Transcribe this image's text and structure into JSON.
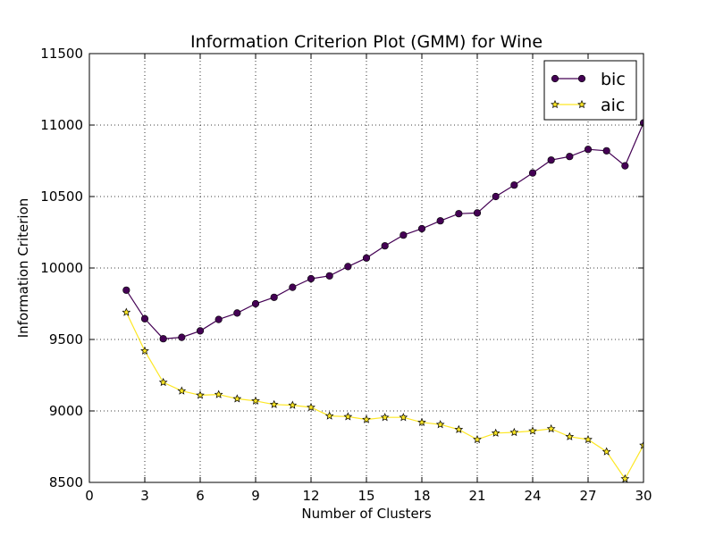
{
  "chart_data": {
    "type": "line",
    "title": "Information Criterion Plot (GMM) for Wine",
    "xlabel": "Number of Clusters",
    "ylabel": "Information Criterion",
    "xlim": [
      0,
      30
    ],
    "ylim": [
      8500,
      11500
    ],
    "xticks": [
      0,
      3,
      6,
      9,
      12,
      15,
      18,
      21,
      24,
      27,
      30
    ],
    "yticks": [
      8500,
      9000,
      9500,
      10000,
      10500,
      11000,
      11500
    ],
    "grid": true,
    "legend_position": "top-right",
    "x": [
      2,
      3,
      4,
      5,
      6,
      7,
      8,
      9,
      10,
      11,
      12,
      13,
      14,
      15,
      16,
      17,
      18,
      19,
      20,
      21,
      22,
      23,
      24,
      25,
      26,
      27,
      28,
      29,
      30
    ],
    "series": [
      {
        "name": "bic",
        "color": "#440154",
        "marker": "circle",
        "values": [
          9845,
          9645,
          9505,
          9515,
          9560,
          9640,
          9685,
          9750,
          9795,
          9865,
          9925,
          9945,
          10010,
          10070,
          10155,
          10230,
          10275,
          10330,
          10380,
          10385,
          10500,
          10580,
          10665,
          10755,
          10780,
          10830,
          10820,
          10715,
          11015
        ]
      },
      {
        "name": "aic",
        "color": "#fde725",
        "marker": "star",
        "values": [
          9690,
          9420,
          9200,
          9140,
          9110,
          9115,
          9085,
          9070,
          9045,
          9040,
          9025,
          8965,
          8960,
          8940,
          8955,
          8955,
          8920,
          8905,
          8870,
          8800,
          8845,
          8850,
          8860,
          8875,
          8820,
          8800,
          8715,
          8525,
          8760
        ]
      }
    ]
  }
}
